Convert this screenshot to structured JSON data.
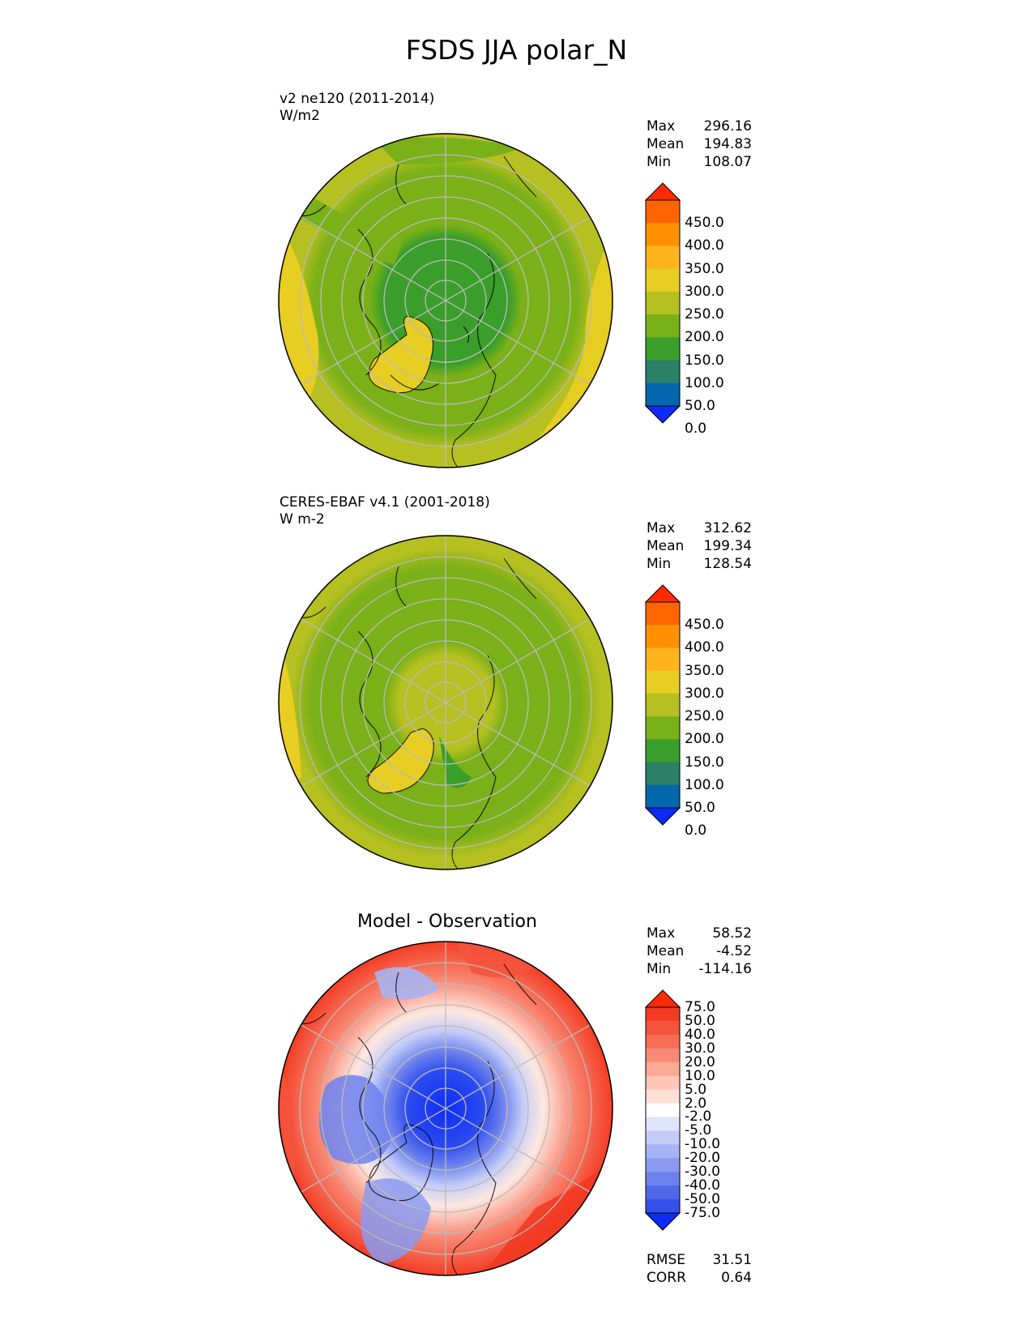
{
  "title": "FSDS JJA polar_N",
  "panels": [
    {
      "id": "test",
      "title_line1": "v2 ne120 (2011-2014)",
      "title_line2": "W/m2",
      "stats": {
        "max_label": "Max",
        "max": "296.16",
        "mean_label": "Mean",
        "mean": "194.83",
        "min_label": "Min",
        "min": "108.07"
      },
      "colorbar": {
        "labels": [
          "450.0",
          "400.0",
          "350.0",
          "300.0",
          "250.0",
          "200.0",
          "150.0",
          "100.0",
          "50.0",
          "0.0"
        ],
        "colors": [
          "#ff2b00",
          "#ff6400",
          "#ff9100",
          "#ffb41e",
          "#e8cd23",
          "#b6c020",
          "#7ab018",
          "#3a9e2a",
          "#2d8068",
          "#0567ad",
          "#0d2cf5"
        ]
      }
    },
    {
      "id": "ref",
      "title_line1": "CERES-EBAF v4.1 (2001-2018)",
      "title_line2": "W m-2",
      "stats": {
        "max_label": "Max",
        "max": "312.62",
        "mean_label": "Mean",
        "mean": "199.34",
        "min_label": "Min",
        "min": "128.54"
      },
      "colorbar": {
        "labels": [
          "450.0",
          "400.0",
          "350.0",
          "300.0",
          "250.0",
          "200.0",
          "150.0",
          "100.0",
          "50.0",
          "0.0"
        ],
        "colors": [
          "#ff2b00",
          "#ff6400",
          "#ff9100",
          "#ffb41e",
          "#e8cd23",
          "#b6c020",
          "#7ab018",
          "#3a9e2a",
          "#2d8068",
          "#0567ad",
          "#0d2cf5"
        ]
      }
    },
    {
      "id": "diff",
      "title": "Model - Observation",
      "stats": {
        "max_label": "Max",
        "max": "58.52",
        "mean_label": "Mean",
        "mean": "-4.52",
        "min_label": "Min",
        "min": "-114.16"
      },
      "colorbar": {
        "labels": [
          "75.0",
          "50.0",
          "40.0",
          "30.0",
          "20.0",
          "10.0",
          "5.0",
          "2.0",
          "-2.0",
          "-5.0",
          "-10.0",
          "-20.0",
          "-30.0",
          "-40.0",
          "-50.0",
          "-75.0"
        ],
        "colors": [
          "#ff2b00",
          "#f33a22",
          "#f5533c",
          "#f76d57",
          "#f98a75",
          "#fba894",
          "#fdc6b6",
          "#fee0d6",
          "#ffffff",
          "#dfe5fb",
          "#c3ccf8",
          "#a6b3f4",
          "#8a9af0",
          "#6d81ec",
          "#5068e8",
          "#3350ea",
          "#0d2cf5"
        ]
      },
      "metrics": {
        "rmse_label": "RMSE",
        "rmse": "31.51",
        "corr_label": "CORR",
        "corr": "0.64"
      }
    }
  ]
}
